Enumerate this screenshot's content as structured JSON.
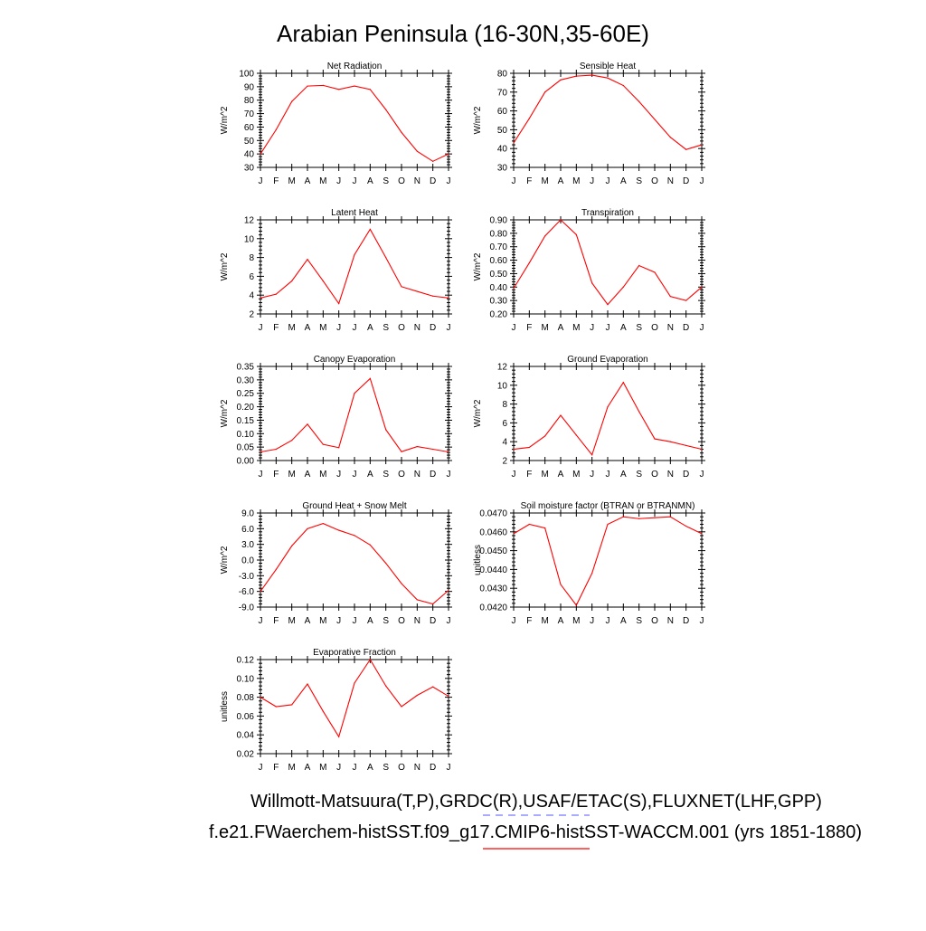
{
  "figure": {
    "title": "Arabian Peninsula (16-30N,35-60E)",
    "obs_label": "Willmott-Matsuura(T,P),GRDC(R),USAF/ETAC(S),FLUXNET(LHF,GPP)",
    "model_label": "f.e21.FWaerchem-histSST.f09_g17.CMIP6-histSST-WACCM.001 (yrs 1851-1880)",
    "obs_line_color": "#7777ff",
    "model_line_color": "#ff0000"
  },
  "chart_data": [
    {
      "type": "line",
      "title": "Net Radiation",
      "ylabel": "W/m^2",
      "categories": [
        "J",
        "F",
        "M",
        "A",
        "M",
        "J",
        "J",
        "A",
        "S",
        "O",
        "N",
        "D",
        "J"
      ],
      "ylim": [
        30,
        100
      ],
      "yticks": [
        30,
        40,
        50,
        60,
        70,
        80,
        90,
        100
      ],
      "ytick_labels": [
        "30",
        "40",
        "50",
        "60",
        "70",
        "80",
        "90",
        "100"
      ],
      "series": [
        {
          "values": [
            40,
            58,
            79,
            90.5,
            91,
            88,
            90.5,
            88,
            73,
            56,
            42,
            34.5,
            40
          ]
        }
      ]
    },
    {
      "type": "line",
      "title": "Sensible Heat",
      "ylabel": "W/m^2",
      "categories": [
        "J",
        "F",
        "M",
        "A",
        "M",
        "J",
        "J",
        "A",
        "S",
        "O",
        "N",
        "D",
        "J"
      ],
      "ylim": [
        30,
        80
      ],
      "yticks": [
        30,
        40,
        50,
        60,
        70,
        80
      ],
      "ytick_labels": [
        "30",
        "40",
        "50",
        "60",
        "70",
        "80"
      ],
      "series": [
        {
          "values": [
            43,
            56,
            70,
            76.5,
            78.5,
            79,
            77.5,
            73.5,
            65,
            55.5,
            46,
            39.5,
            42
          ]
        }
      ]
    },
    {
      "type": "line",
      "title": "Latent Heat",
      "ylabel": "W/m^2",
      "categories": [
        "J",
        "F",
        "M",
        "A",
        "M",
        "J",
        "J",
        "A",
        "S",
        "O",
        "N",
        "D",
        "J"
      ],
      "ylim": [
        2,
        12
      ],
      "yticks": [
        2,
        4,
        6,
        8,
        10,
        12
      ],
      "ytick_labels": [
        "2",
        "4",
        "6",
        "8",
        "10",
        "12"
      ],
      "series": [
        {
          "values": [
            3.7,
            4.1,
            5.5,
            7.8,
            5.5,
            3.1,
            8.3,
            11.0,
            8.0,
            4.9,
            4.4,
            3.9,
            3.7
          ]
        }
      ]
    },
    {
      "type": "line",
      "title": "Transpiration",
      "ylabel": "W/m^2",
      "categories": [
        "J",
        "F",
        "M",
        "A",
        "M",
        "J",
        "J",
        "A",
        "S",
        "O",
        "N",
        "D",
        "J"
      ],
      "ylim": [
        0.2,
        0.9
      ],
      "yticks": [
        0.2,
        0.3,
        0.4,
        0.5,
        0.6,
        0.7,
        0.8,
        0.9
      ],
      "ytick_labels": [
        "0.20",
        "0.30",
        "0.40",
        "0.50",
        "0.60",
        "0.70",
        "0.80",
        "0.90"
      ],
      "series": [
        {
          "values": [
            0.39,
            0.58,
            0.78,
            0.9,
            0.79,
            0.43,
            0.27,
            0.4,
            0.56,
            0.51,
            0.33,
            0.3,
            0.4
          ]
        }
      ]
    },
    {
      "type": "line",
      "title": "Canopy Evaporation",
      "ylabel": "W/m^2",
      "categories": [
        "J",
        "F",
        "M",
        "A",
        "M",
        "J",
        "J",
        "A",
        "S",
        "O",
        "N",
        "D",
        "J"
      ],
      "ylim": [
        0,
        0.35
      ],
      "yticks": [
        0,
        0.05,
        0.1,
        0.15,
        0.2,
        0.25,
        0.3,
        0.35
      ],
      "ytick_labels": [
        "0.00",
        "0.05",
        "0.10",
        "0.15",
        "0.20",
        "0.25",
        "0.30",
        "0.35"
      ],
      "series": [
        {
          "values": [
            0.032,
            0.042,
            0.075,
            0.135,
            0.06,
            0.048,
            0.25,
            0.305,
            0.115,
            0.033,
            0.052,
            0.042,
            0.032
          ]
        }
      ]
    },
    {
      "type": "line",
      "title": "Ground Evaporation",
      "ylabel": "W/m^2",
      "categories": [
        "J",
        "F",
        "M",
        "A",
        "M",
        "J",
        "J",
        "A",
        "S",
        "O",
        "N",
        "D",
        "J"
      ],
      "ylim": [
        2,
        12
      ],
      "yticks": [
        2,
        4,
        6,
        8,
        10,
        12
      ],
      "ytick_labels": [
        "2",
        "4",
        "6",
        "8",
        "10",
        "12"
      ],
      "series": [
        {
          "values": [
            3.2,
            3.4,
            4.6,
            6.8,
            4.7,
            2.6,
            7.7,
            10.3,
            7.2,
            4.3,
            4.0,
            3.6,
            3.2
          ]
        }
      ]
    },
    {
      "type": "line",
      "title": "Ground Heat + Snow Melt",
      "ylabel": "W/m^2",
      "categories": [
        "J",
        "F",
        "M",
        "A",
        "M",
        "J",
        "J",
        "A",
        "S",
        "O",
        "N",
        "D",
        "J"
      ],
      "ylim": [
        -9,
        9
      ],
      "yticks": [
        -9,
        -6,
        -3,
        0,
        3,
        6,
        9
      ],
      "ytick_labels": [
        "-9.0",
        "-6.0",
        "-3.0",
        "0.0",
        "3.0",
        "6.0",
        "9.0"
      ],
      "series": [
        {
          "values": [
            -6.0,
            -1.8,
            2.7,
            6.0,
            7.0,
            5.7,
            4.7,
            2.9,
            -0.6,
            -4.5,
            -7.6,
            -8.4,
            -5.8
          ]
        }
      ]
    },
    {
      "type": "line",
      "title": "Soil moisture factor (BTRAN or BTRANMN)",
      "ylabel": "unitless",
      "categories": [
        "J",
        "F",
        "M",
        "A",
        "M",
        "J",
        "J",
        "A",
        "S",
        "O",
        "N",
        "D",
        "J"
      ],
      "ylim": [
        0.042,
        0.047
      ],
      "yticks": [
        0.042,
        0.043,
        0.044,
        0.045,
        0.046,
        0.047
      ],
      "ytick_labels": [
        "0.0420",
        "0.0430",
        "0.0440",
        "0.0450",
        "0.0460",
        "0.0470"
      ],
      "series": [
        {
          "values": [
            0.0459,
            0.0464,
            0.0462,
            0.0432,
            0.0421,
            0.0438,
            0.0464,
            0.0468,
            0.0467,
            0.04675,
            0.0468,
            0.0463,
            0.0459
          ]
        }
      ]
    },
    {
      "type": "line",
      "title": "Evaporative Fraction",
      "ylabel": "unitless",
      "categories": [
        "J",
        "F",
        "M",
        "A",
        "M",
        "J",
        "J",
        "A",
        "S",
        "O",
        "N",
        "D",
        "J"
      ],
      "ylim": [
        0.02,
        0.12
      ],
      "yticks": [
        0.02,
        0.04,
        0.06,
        0.08,
        0.1,
        0.12
      ],
      "ytick_labels": [
        "0.02",
        "0.04",
        "0.06",
        "0.08",
        "0.10",
        "0.12"
      ],
      "series": [
        {
          "values": [
            0.08,
            0.07,
            0.072,
            0.094,
            0.065,
            0.038,
            0.095,
            0.12,
            0.092,
            0.07,
            0.082,
            0.091,
            0.081
          ]
        }
      ]
    }
  ]
}
